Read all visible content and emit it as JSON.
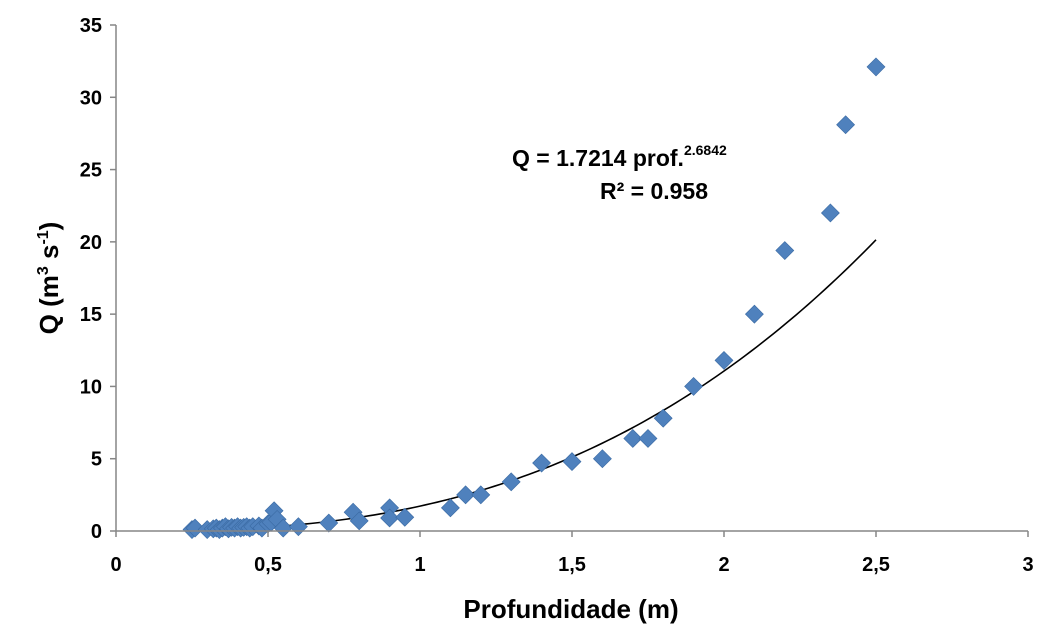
{
  "chart_data": {
    "type": "scatter",
    "xlabel": "Profundidade (m)",
    "ylabel": {
      "base": "Q (m",
      "sup1": "3",
      "mid": " s",
      "sup2": "-1",
      "end": ")"
    },
    "xlim": [
      0,
      3
    ],
    "ylim": [
      0,
      35
    ],
    "xticks": [
      0,
      0.5,
      1,
      1.5,
      2,
      2.5,
      3
    ],
    "xtick_labels": [
      "0",
      "0,5",
      "1",
      "1,5",
      "2",
      "2,5",
      "3"
    ],
    "yticks": [
      0,
      5,
      10,
      15,
      20,
      25,
      30,
      35
    ],
    "ytick_labels": [
      "0",
      "5",
      "10",
      "15",
      "20",
      "25",
      "30",
      "35"
    ],
    "grid": false,
    "marker_color": "#4f81bd",
    "marker_shape": "diamond",
    "trendline": {
      "type": "power",
      "a": 1.7214,
      "b": 2.6842,
      "color": "#000000",
      "x_range": [
        0.25,
        2.5
      ]
    },
    "equation": {
      "text": "Q = 1.7214 prof.",
      "exponent": "2.6842",
      "r2": "R² = 0.958"
    },
    "points": [
      {
        "x": 0.25,
        "y": 0.1
      },
      {
        "x": 0.26,
        "y": 0.2
      },
      {
        "x": 0.3,
        "y": 0.1
      },
      {
        "x": 0.32,
        "y": 0.15
      },
      {
        "x": 0.33,
        "y": 0.2
      },
      {
        "x": 0.34,
        "y": 0.1
      },
      {
        "x": 0.35,
        "y": 0.2
      },
      {
        "x": 0.36,
        "y": 0.3
      },
      {
        "x": 0.37,
        "y": 0.15
      },
      {
        "x": 0.38,
        "y": 0.25
      },
      {
        "x": 0.39,
        "y": 0.2
      },
      {
        "x": 0.4,
        "y": 0.3
      },
      {
        "x": 0.41,
        "y": 0.2
      },
      {
        "x": 0.42,
        "y": 0.25
      },
      {
        "x": 0.43,
        "y": 0.3
      },
      {
        "x": 0.44,
        "y": 0.2
      },
      {
        "x": 0.45,
        "y": 0.3
      },
      {
        "x": 0.47,
        "y": 0.35
      },
      {
        "x": 0.48,
        "y": 0.2
      },
      {
        "x": 0.5,
        "y": 0.5
      },
      {
        "x": 0.51,
        "y": 0.6
      },
      {
        "x": 0.52,
        "y": 1.4
      },
      {
        "x": 0.53,
        "y": 0.8
      },
      {
        "x": 0.55,
        "y": 0.2
      },
      {
        "x": 0.6,
        "y": 0.3
      },
      {
        "x": 0.7,
        "y": 0.55
      },
      {
        "x": 0.78,
        "y": 1.3
      },
      {
        "x": 0.8,
        "y": 0.7
      },
      {
        "x": 0.9,
        "y": 1.6
      },
      {
        "x": 0.9,
        "y": 0.9
      },
      {
        "x": 0.95,
        "y": 0.95
      },
      {
        "x": 1.1,
        "y": 1.6
      },
      {
        "x": 1.15,
        "y": 2.5
      },
      {
        "x": 1.2,
        "y": 2.5
      },
      {
        "x": 1.3,
        "y": 3.4
      },
      {
        "x": 1.4,
        "y": 4.7
      },
      {
        "x": 1.5,
        "y": 4.8
      },
      {
        "x": 1.6,
        "y": 5.0
      },
      {
        "x": 1.7,
        "y": 6.4
      },
      {
        "x": 1.75,
        "y": 6.4
      },
      {
        "x": 1.8,
        "y": 7.8
      },
      {
        "x": 1.9,
        "y": 10.0
      },
      {
        "x": 2.0,
        "y": 11.8
      },
      {
        "x": 2.1,
        "y": 15.0
      },
      {
        "x": 2.2,
        "y": 19.4
      },
      {
        "x": 2.35,
        "y": 22.0
      },
      {
        "x": 2.4,
        "y": 28.1
      },
      {
        "x": 2.5,
        "y": 32.1
      }
    ]
  }
}
